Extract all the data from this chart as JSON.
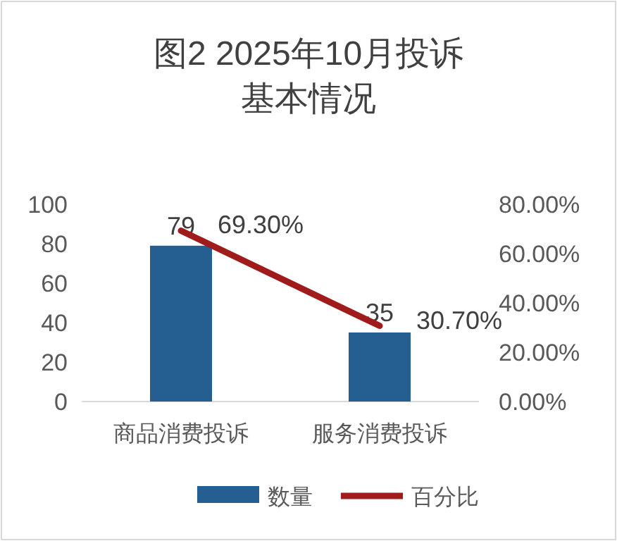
{
  "chart_data": {
    "type": "bar",
    "title": "图2  2025年10月投诉基本情况",
    "categories": [
      "商品消费投诉",
      "服务消费投诉"
    ],
    "series": [
      {
        "name": "数量",
        "color": "#255e91",
        "values": [
          79,
          35
        ],
        "value_labels": [
          "79",
          "35"
        ]
      },
      {
        "name": "百分比",
        "type": "line",
        "axis": "y2",
        "color": "#a01c1c",
        "values": [
          69.3,
          30.7
        ],
        "value_labels": [
          "69.30%",
          "30.70%"
        ]
      }
    ],
    "ylim": [
      0,
      100
    ],
    "yticks": [
      0,
      20,
      40,
      60,
      80,
      100
    ],
    "y2lim": [
      0,
      80
    ],
    "y2ticks": [
      {
        "value": 0,
        "label": "0.00%"
      },
      {
        "value": 20,
        "label": "20.00%"
      },
      {
        "value": 40,
        "label": "40.00%"
      },
      {
        "value": 60,
        "label": "60.00%"
      },
      {
        "value": 80,
        "label": "80.00%"
      }
    ],
    "legend": "bottom",
    "grid": false,
    "marker": "none"
  }
}
